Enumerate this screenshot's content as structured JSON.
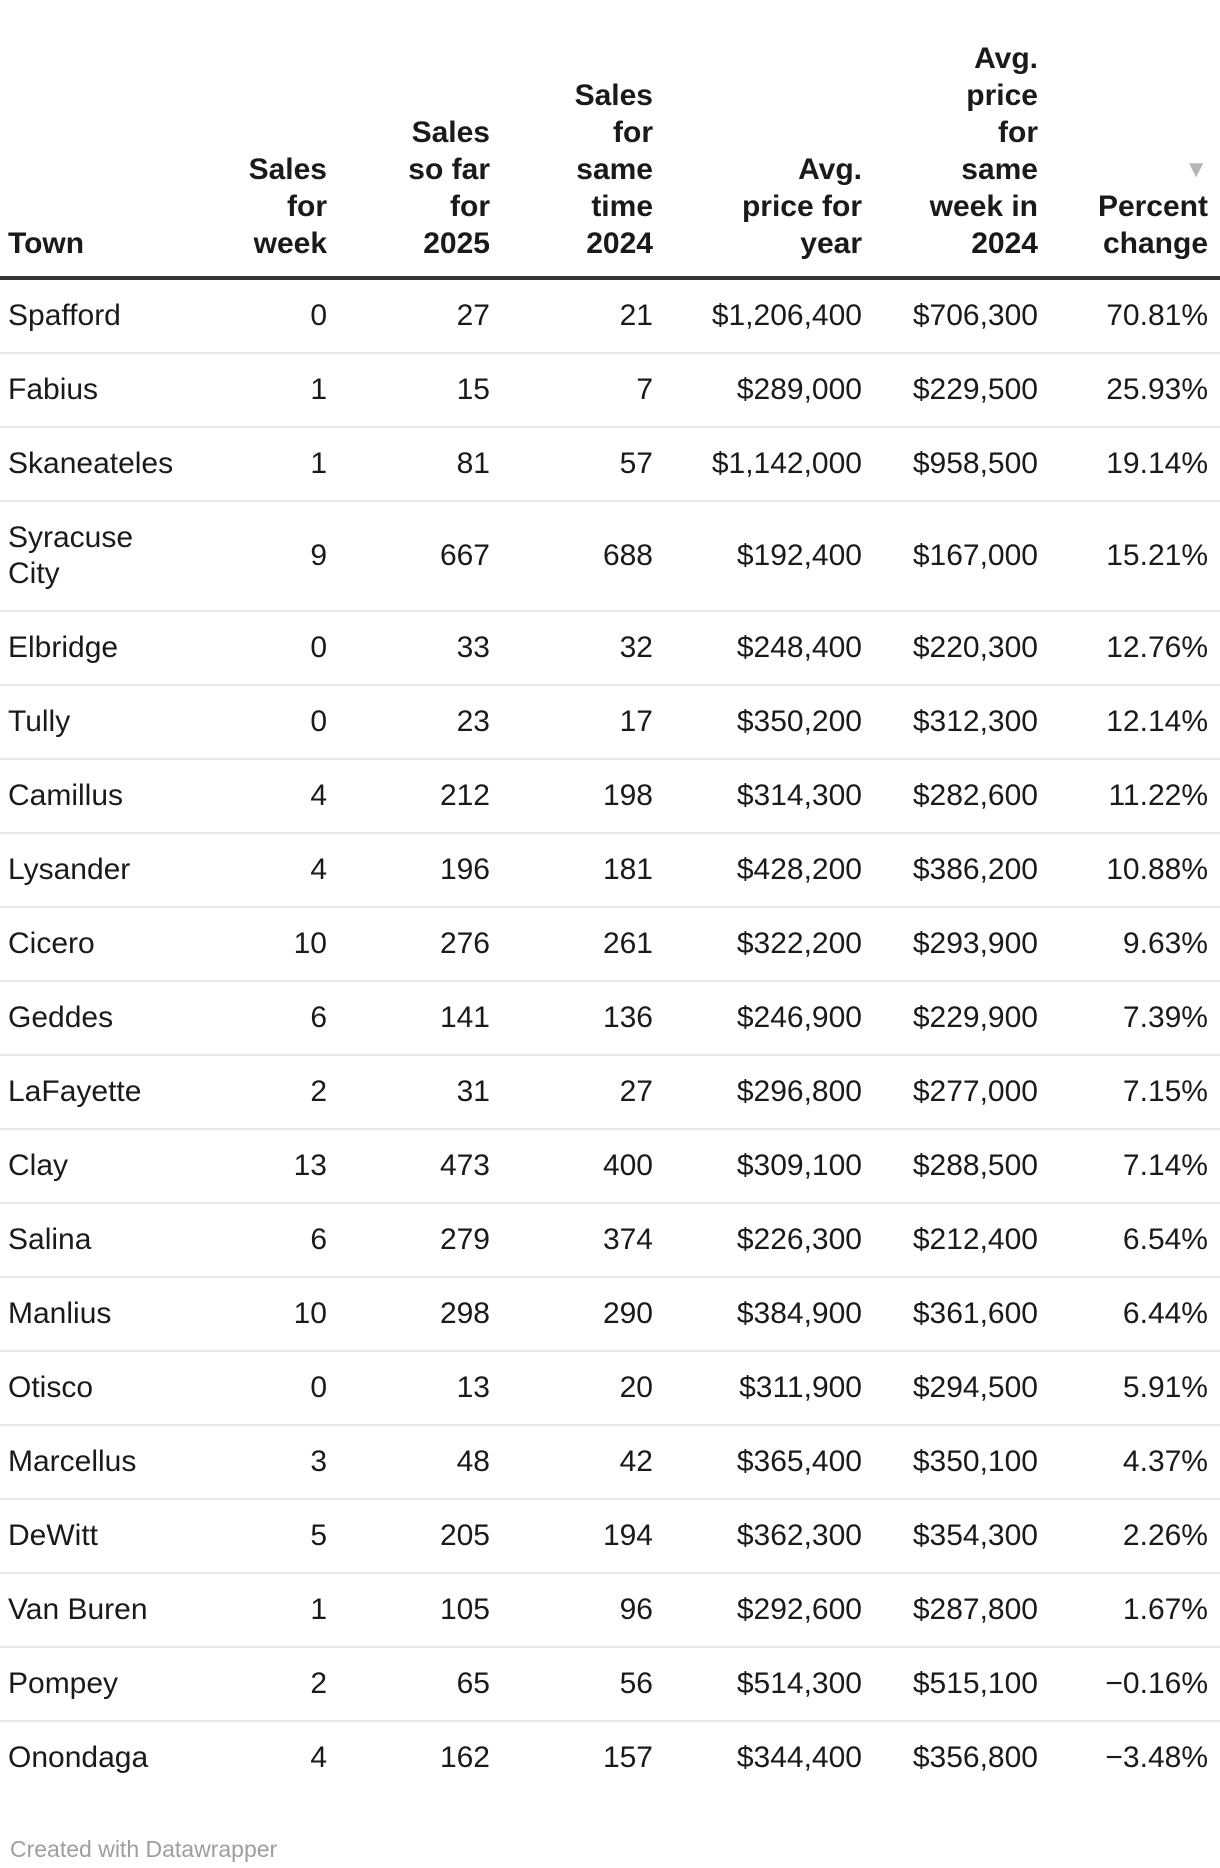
{
  "table": {
    "columns": [
      {
        "id": "town",
        "label": "Town"
      },
      {
        "id": "sales_for_week",
        "label": "Sales for week"
      },
      {
        "id": "sales_so_far_2025",
        "label": "Sales so far for 2025"
      },
      {
        "id": "sales_same_time_2024",
        "label": "Sales for same time 2024"
      },
      {
        "id": "avg_price_year",
        "label": "Avg. price for year"
      },
      {
        "id": "avg_price_same_week_2024",
        "label": "Avg. price for same week in 2024"
      },
      {
        "id": "percent_change",
        "label": "Percent change",
        "sorted": "desc"
      }
    ],
    "sort_indicator": "▼",
    "rows": [
      {
        "town": "Spafford",
        "sales_for_week": "0",
        "sales_so_far_2025": "27",
        "sales_same_time_2024": "21",
        "avg_price_year": "$1,206,400",
        "avg_price_same_week_2024": "$706,300",
        "percent_change": "70.81%"
      },
      {
        "town": "Fabius",
        "sales_for_week": "1",
        "sales_so_far_2025": "15",
        "sales_same_time_2024": "7",
        "avg_price_year": "$289,000",
        "avg_price_same_week_2024": "$229,500",
        "percent_change": "25.93%"
      },
      {
        "town": "Skaneateles",
        "sales_for_week": "1",
        "sales_so_far_2025": "81",
        "sales_same_time_2024": "57",
        "avg_price_year": "$1,142,000",
        "avg_price_same_week_2024": "$958,500",
        "percent_change": "19.14%"
      },
      {
        "town": "Syracuse City",
        "sales_for_week": "9",
        "sales_so_far_2025": "667",
        "sales_same_time_2024": "688",
        "avg_price_year": "$192,400",
        "avg_price_same_week_2024": "$167,000",
        "percent_change": "15.21%"
      },
      {
        "town": "Elbridge",
        "sales_for_week": "0",
        "sales_so_far_2025": "33",
        "sales_same_time_2024": "32",
        "avg_price_year": "$248,400",
        "avg_price_same_week_2024": "$220,300",
        "percent_change": "12.76%"
      },
      {
        "town": "Tully",
        "sales_for_week": "0",
        "sales_so_far_2025": "23",
        "sales_same_time_2024": "17",
        "avg_price_year": "$350,200",
        "avg_price_same_week_2024": "$312,300",
        "percent_change": "12.14%"
      },
      {
        "town": "Camillus",
        "sales_for_week": "4",
        "sales_so_far_2025": "212",
        "sales_same_time_2024": "198",
        "avg_price_year": "$314,300",
        "avg_price_same_week_2024": "$282,600",
        "percent_change": "11.22%"
      },
      {
        "town": "Lysander",
        "sales_for_week": "4",
        "sales_so_far_2025": "196",
        "sales_same_time_2024": "181",
        "avg_price_year": "$428,200",
        "avg_price_same_week_2024": "$386,200",
        "percent_change": "10.88%"
      },
      {
        "town": "Cicero",
        "sales_for_week": "10",
        "sales_so_far_2025": "276",
        "sales_same_time_2024": "261",
        "avg_price_year": "$322,200",
        "avg_price_same_week_2024": "$293,900",
        "percent_change": "9.63%"
      },
      {
        "town": "Geddes",
        "sales_for_week": "6",
        "sales_so_far_2025": "141",
        "sales_same_time_2024": "136",
        "avg_price_year": "$246,900",
        "avg_price_same_week_2024": "$229,900",
        "percent_change": "7.39%"
      },
      {
        "town": "LaFayette",
        "sales_for_week": "2",
        "sales_so_far_2025": "31",
        "sales_same_time_2024": "27",
        "avg_price_year": "$296,800",
        "avg_price_same_week_2024": "$277,000",
        "percent_change": "7.15%"
      },
      {
        "town": "Clay",
        "sales_for_week": "13",
        "sales_so_far_2025": "473",
        "sales_same_time_2024": "400",
        "avg_price_year": "$309,100",
        "avg_price_same_week_2024": "$288,500",
        "percent_change": "7.14%"
      },
      {
        "town": "Salina",
        "sales_for_week": "6",
        "sales_so_far_2025": "279",
        "sales_same_time_2024": "374",
        "avg_price_year": "$226,300",
        "avg_price_same_week_2024": "$212,400",
        "percent_change": "6.54%"
      },
      {
        "town": "Manlius",
        "sales_for_week": "10",
        "sales_so_far_2025": "298",
        "sales_same_time_2024": "290",
        "avg_price_year": "$384,900",
        "avg_price_same_week_2024": "$361,600",
        "percent_change": "6.44%"
      },
      {
        "town": "Otisco",
        "sales_for_week": "0",
        "sales_so_far_2025": "13",
        "sales_same_time_2024": "20",
        "avg_price_year": "$311,900",
        "avg_price_same_week_2024": "$294,500",
        "percent_change": "5.91%"
      },
      {
        "town": "Marcellus",
        "sales_for_week": "3",
        "sales_so_far_2025": "48",
        "sales_same_time_2024": "42",
        "avg_price_year": "$365,400",
        "avg_price_same_week_2024": "$350,100",
        "percent_change": "4.37%"
      },
      {
        "town": "DeWitt",
        "sales_for_week": "5",
        "sales_so_far_2025": "205",
        "sales_same_time_2024": "194",
        "avg_price_year": "$362,300",
        "avg_price_same_week_2024": "$354,300",
        "percent_change": "2.26%"
      },
      {
        "town": "Van Buren",
        "sales_for_week": "1",
        "sales_so_far_2025": "105",
        "sales_same_time_2024": "96",
        "avg_price_year": "$292,600",
        "avg_price_same_week_2024": "$287,800",
        "percent_change": "1.67%"
      },
      {
        "town": "Pompey",
        "sales_for_week": "2",
        "sales_so_far_2025": "65",
        "sales_same_time_2024": "56",
        "avg_price_year": "$514,300",
        "avg_price_same_week_2024": "$515,100",
        "percent_change": "−0.16%"
      },
      {
        "town": "Onondaga",
        "sales_for_week": "4",
        "sales_so_far_2025": "162",
        "sales_same_time_2024": "157",
        "avg_price_year": "$344,400",
        "avg_price_same_week_2024": "$356,800",
        "percent_change": "−3.48%"
      }
    ]
  },
  "footer": {
    "attribution": "Created with Datawrapper"
  },
  "colors": {
    "text": "#1a1a1a",
    "header_rule": "#333333",
    "row_divider": "#e8e8e8",
    "sort_arrow": "#b5b5b5",
    "muted": "#9e9e9e"
  },
  "chart_data": {
    "type": "table",
    "title": "",
    "columns": [
      "Town",
      "Sales for week",
      "Sales so far for 2025",
      "Sales for same time 2024",
      "Avg. price for year",
      "Avg. price for same week in 2024",
      "Percent change"
    ],
    "sorted_by": "Percent change",
    "sort_direction": "descending",
    "rows": [
      [
        "Spafford",
        0,
        27,
        21,
        1206400,
        706300,
        70.81
      ],
      [
        "Fabius",
        1,
        15,
        7,
        289000,
        229500,
        25.93
      ],
      [
        "Skaneateles",
        1,
        81,
        57,
        1142000,
        958500,
        19.14
      ],
      [
        "Syracuse City",
        9,
        667,
        688,
        192400,
        167000,
        15.21
      ],
      [
        "Elbridge",
        0,
        33,
        32,
        248400,
        220300,
        12.76
      ],
      [
        "Tully",
        0,
        23,
        17,
        350200,
        312300,
        12.14
      ],
      [
        "Camillus",
        4,
        212,
        198,
        314300,
        282600,
        11.22
      ],
      [
        "Lysander",
        4,
        196,
        181,
        428200,
        386200,
        10.88
      ],
      [
        "Cicero",
        10,
        276,
        261,
        322200,
        293900,
        9.63
      ],
      [
        "Geddes",
        6,
        141,
        136,
        246900,
        229900,
        7.39
      ],
      [
        "LaFayette",
        2,
        31,
        27,
        296800,
        277000,
        7.15
      ],
      [
        "Clay",
        13,
        473,
        400,
        309100,
        288500,
        7.14
      ],
      [
        "Salina",
        6,
        279,
        374,
        226300,
        212400,
        6.54
      ],
      [
        "Manlius",
        10,
        298,
        290,
        384900,
        361600,
        6.44
      ],
      [
        "Otisco",
        0,
        13,
        20,
        311900,
        294500,
        5.91
      ],
      [
        "Marcellus",
        3,
        48,
        42,
        365400,
        350100,
        4.37
      ],
      [
        "DeWitt",
        5,
        205,
        194,
        362300,
        354300,
        2.26
      ],
      [
        "Van Buren",
        1,
        105,
        96,
        292600,
        287800,
        1.67
      ],
      [
        "Pompey",
        2,
        65,
        56,
        514300,
        515100,
        -0.16
      ],
      [
        "Onondaga",
        4,
        162,
        157,
        344400,
        356800,
        -3.48
      ]
    ],
    "attribution": "Created with Datawrapper"
  }
}
